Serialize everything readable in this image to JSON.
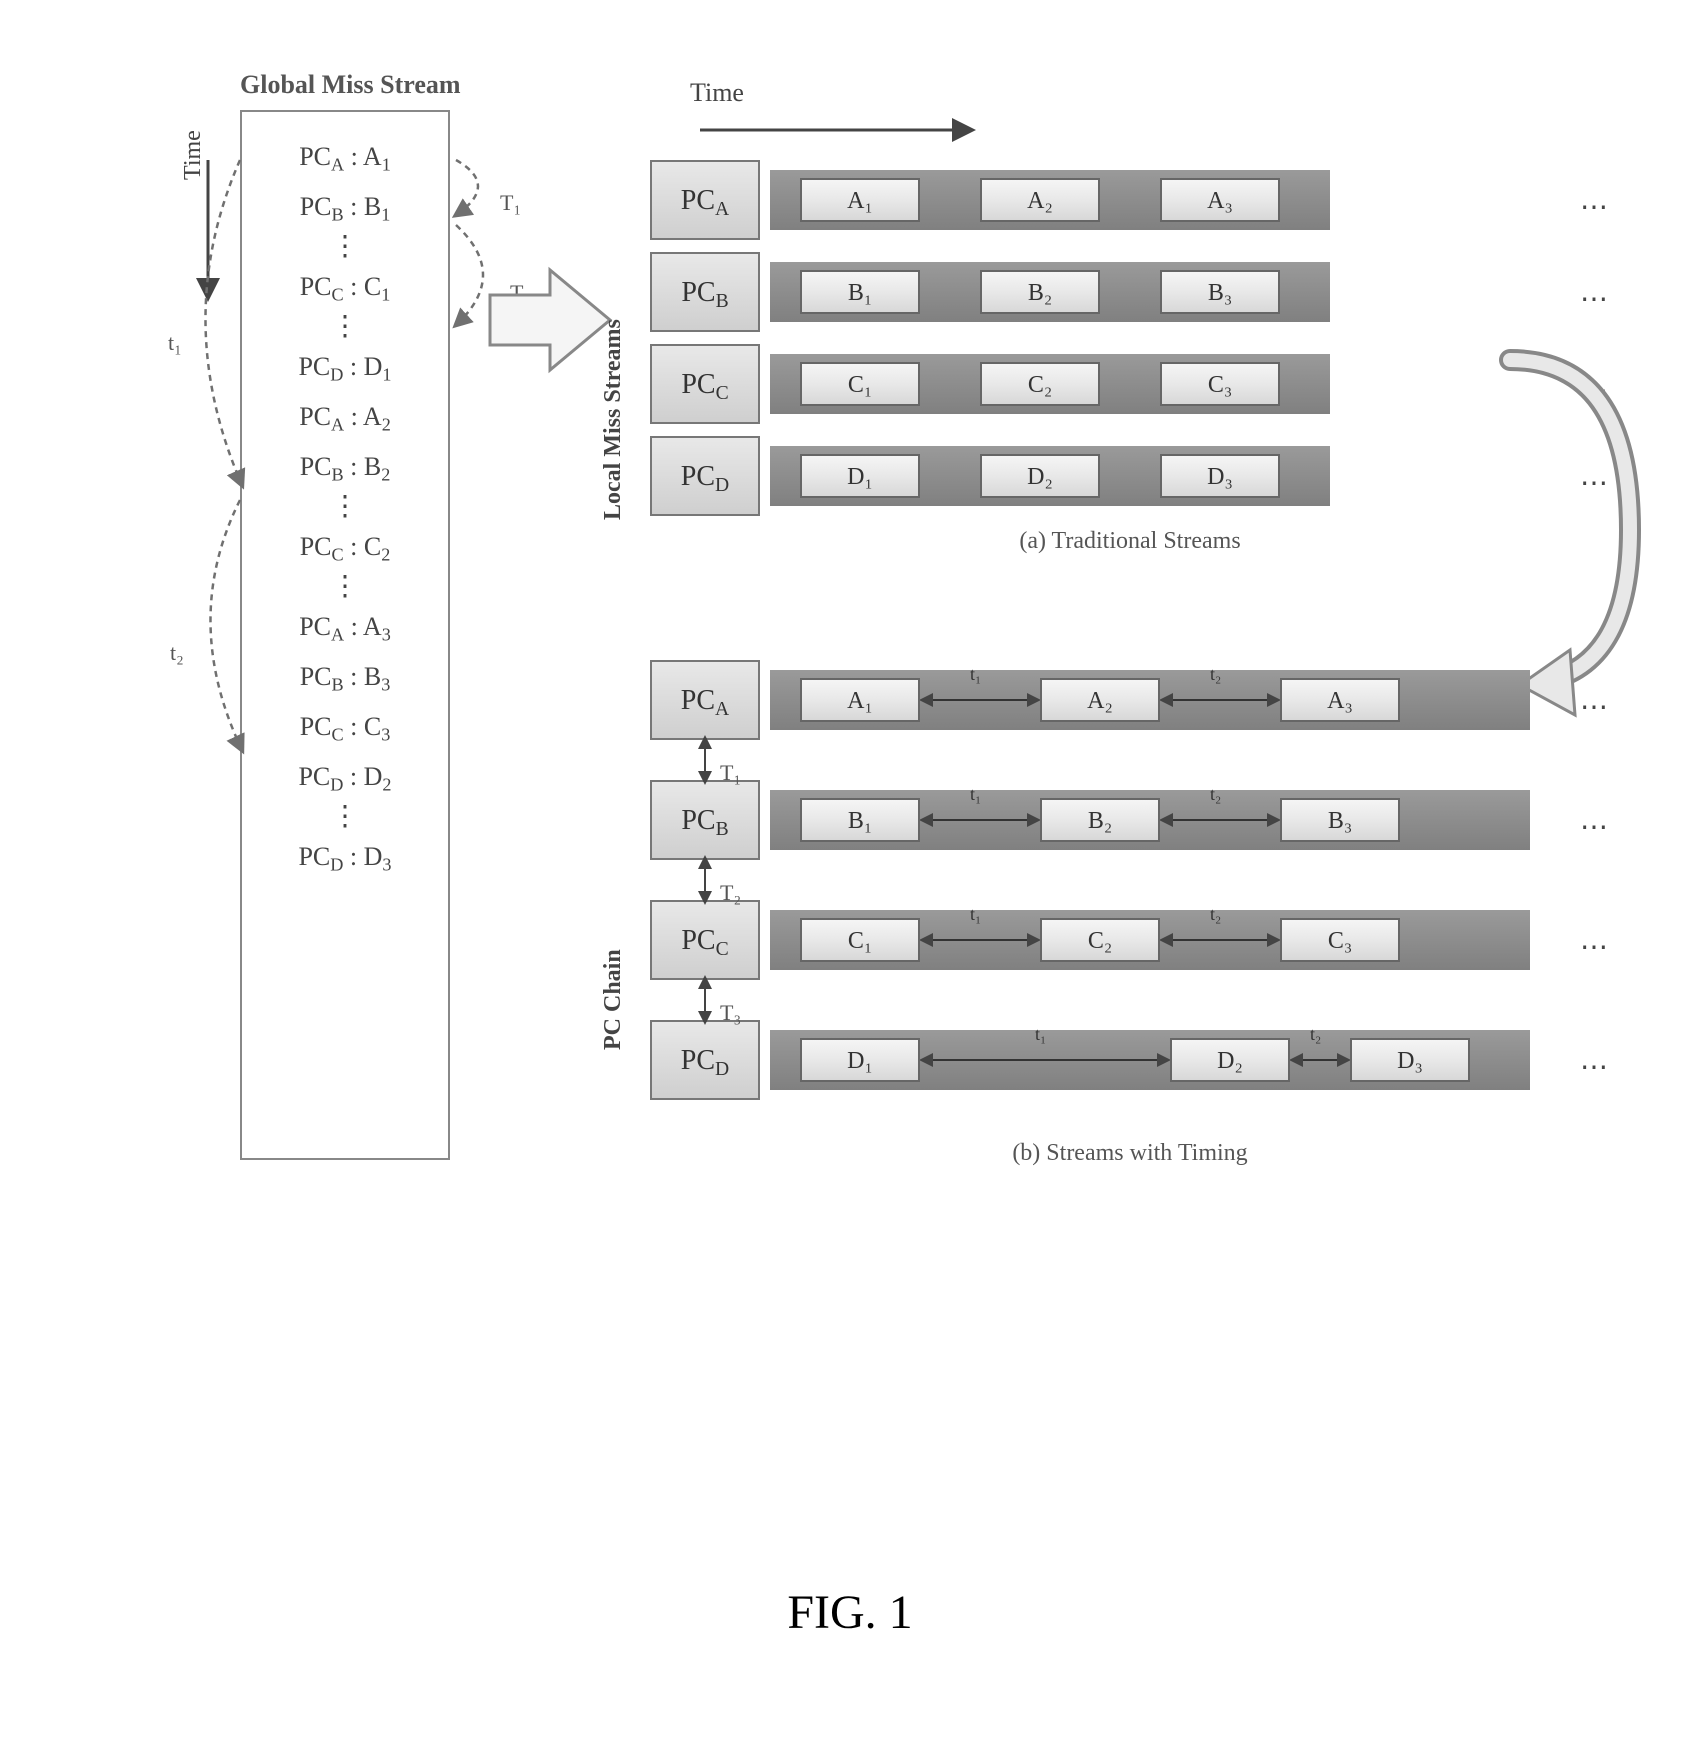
{
  "figure_label": "FIG. 1",
  "colors": {
    "background": "#ffffff",
    "box_border": "#888888",
    "text": "#444444",
    "bar_grad_top": "#9a9a9a",
    "bar_grad_bot": "#808080",
    "cell_grad_top": "#f5f5f5",
    "cell_grad_bot": "#d8d8d8",
    "pc_grad_top": "#e8e8e8",
    "pc_grad_bot": "#cfcfcf",
    "dashed": "#707070"
  },
  "global": {
    "title": "Global Miss Stream",
    "time_label": "Time",
    "rows": [
      {
        "txt": "PC_A : A_1",
        "pc": "A",
        "idx": "1"
      },
      {
        "txt": "PC_B : B_1",
        "pc": "B",
        "idx": "1"
      },
      {
        "vdots": true
      },
      {
        "txt": "PC_C : C_1",
        "pc": "C",
        "idx": "1"
      },
      {
        "vdots": true
      },
      {
        "txt": "PC_D : D_1",
        "pc": "D",
        "idx": "1"
      },
      {
        "txt": "PC_A : A_2",
        "pc": "A",
        "idx": "2"
      },
      {
        "txt": "PC_B : B_2",
        "pc": "B",
        "idx": "2"
      },
      {
        "vdots": true
      },
      {
        "txt": "PC_C : C_2",
        "pc": "C",
        "idx": "2"
      },
      {
        "vdots": true
      },
      {
        "txt": "PC_A : A_3",
        "pc": "A",
        "idx": "3"
      },
      {
        "txt": "PC_B : B_3",
        "pc": "B",
        "idx": "3"
      },
      {
        "txt": "PC_C : C_3",
        "pc": "C",
        "idx": "3"
      },
      {
        "txt": "PC_D : D_2",
        "pc": "D",
        "idx": "2"
      },
      {
        "vdots": true
      },
      {
        "txt": "PC_D : D_3",
        "pc": "D",
        "idx": "3"
      }
    ]
  },
  "annotations": {
    "T1": "T₁",
    "T2": "T₂",
    "t1": "t₁",
    "t2": "t₂",
    "T1b": "T₁",
    "T2b": "T₂",
    "T3b": "T₃"
  },
  "right": {
    "time_label": "Time",
    "local_label": "Local Miss Streams",
    "pcchain_label": "PC Chain"
  },
  "group_a": {
    "caption": "(a) Traditional Streams",
    "cell_positions": [
      30,
      210,
      390
    ],
    "streams": [
      {
        "pc": "PC_A",
        "pc_sub": "A",
        "cells": [
          "A₁",
          "A₂",
          "A₃"
        ]
      },
      {
        "pc": "PC_B",
        "pc_sub": "B",
        "cells": [
          "B₁",
          "B₂",
          "B₃"
        ]
      },
      {
        "pc": "PC_C",
        "pc_sub": "C",
        "cells": [
          "C₁",
          "C₂",
          "C₃"
        ]
      },
      {
        "pc": "PC_D",
        "pc_sub": "D",
        "cells": [
          "D₁",
          "D₂",
          "D₃"
        ]
      }
    ]
  },
  "group_b": {
    "caption": "(b) Streams with Timing",
    "row_gap_labels": [
      "T₁",
      "T₂",
      "T₃"
    ],
    "streams": [
      {
        "pc": "PC_A",
        "pc_sub": "A",
        "cells": [
          "A₁",
          "A₂",
          "A₃"
        ],
        "cell_x": [
          30,
          270,
          510
        ],
        "inter": [
          "t₁",
          "t₂"
        ]
      },
      {
        "pc": "PC_B",
        "pc_sub": "B",
        "cells": [
          "B₁",
          "B₂",
          "B₃"
        ],
        "cell_x": [
          30,
          270,
          510
        ],
        "inter": [
          "t₁",
          "t₂"
        ]
      },
      {
        "pc": "PC_C",
        "pc_sub": "C",
        "cells": [
          "C₁",
          "C₂",
          "C₃"
        ],
        "cell_x": [
          30,
          270,
          510
        ],
        "inter": [
          "t₁",
          "t₂"
        ]
      },
      {
        "pc": "PC_D",
        "pc_sub": "D",
        "cells": [
          "D₁",
          "D₂",
          "D₃"
        ],
        "cell_x": [
          30,
          400,
          580
        ],
        "inter": [
          "t₁",
          "t₂"
        ]
      }
    ]
  }
}
